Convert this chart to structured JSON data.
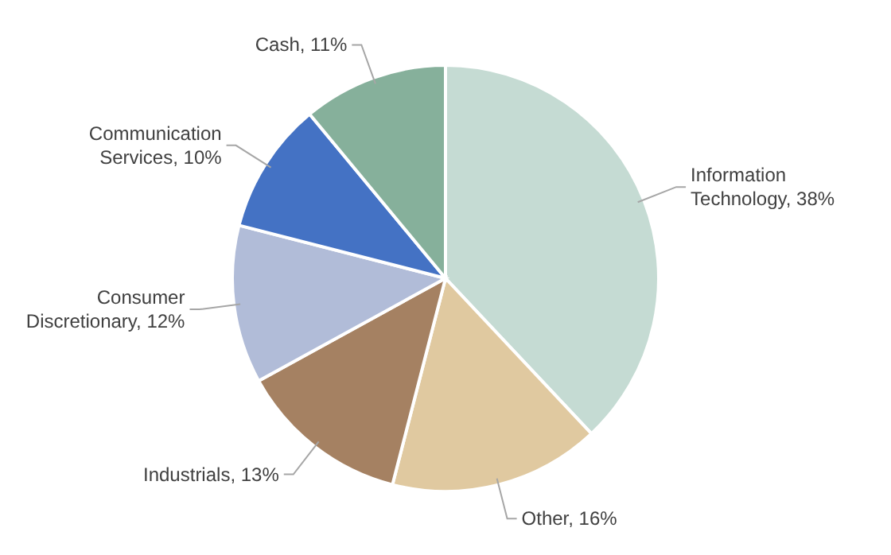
{
  "chart_data": {
    "type": "pie",
    "categories": [
      "Information Technology",
      "Other",
      "Industrials",
      "Consumer Discretionary",
      "Communication Services",
      "Cash"
    ],
    "values": [
      38,
      16,
      13,
      12,
      10,
      11
    ],
    "value_labels": [
      "38%",
      "16%",
      "13%",
      "12%",
      "10%",
      "11%"
    ],
    "colors": [
      "#c5dbd3",
      "#e0c9a0",
      "#a58162",
      "#b1bcd8",
      "#4472c4",
      "#86b09b"
    ]
  }
}
